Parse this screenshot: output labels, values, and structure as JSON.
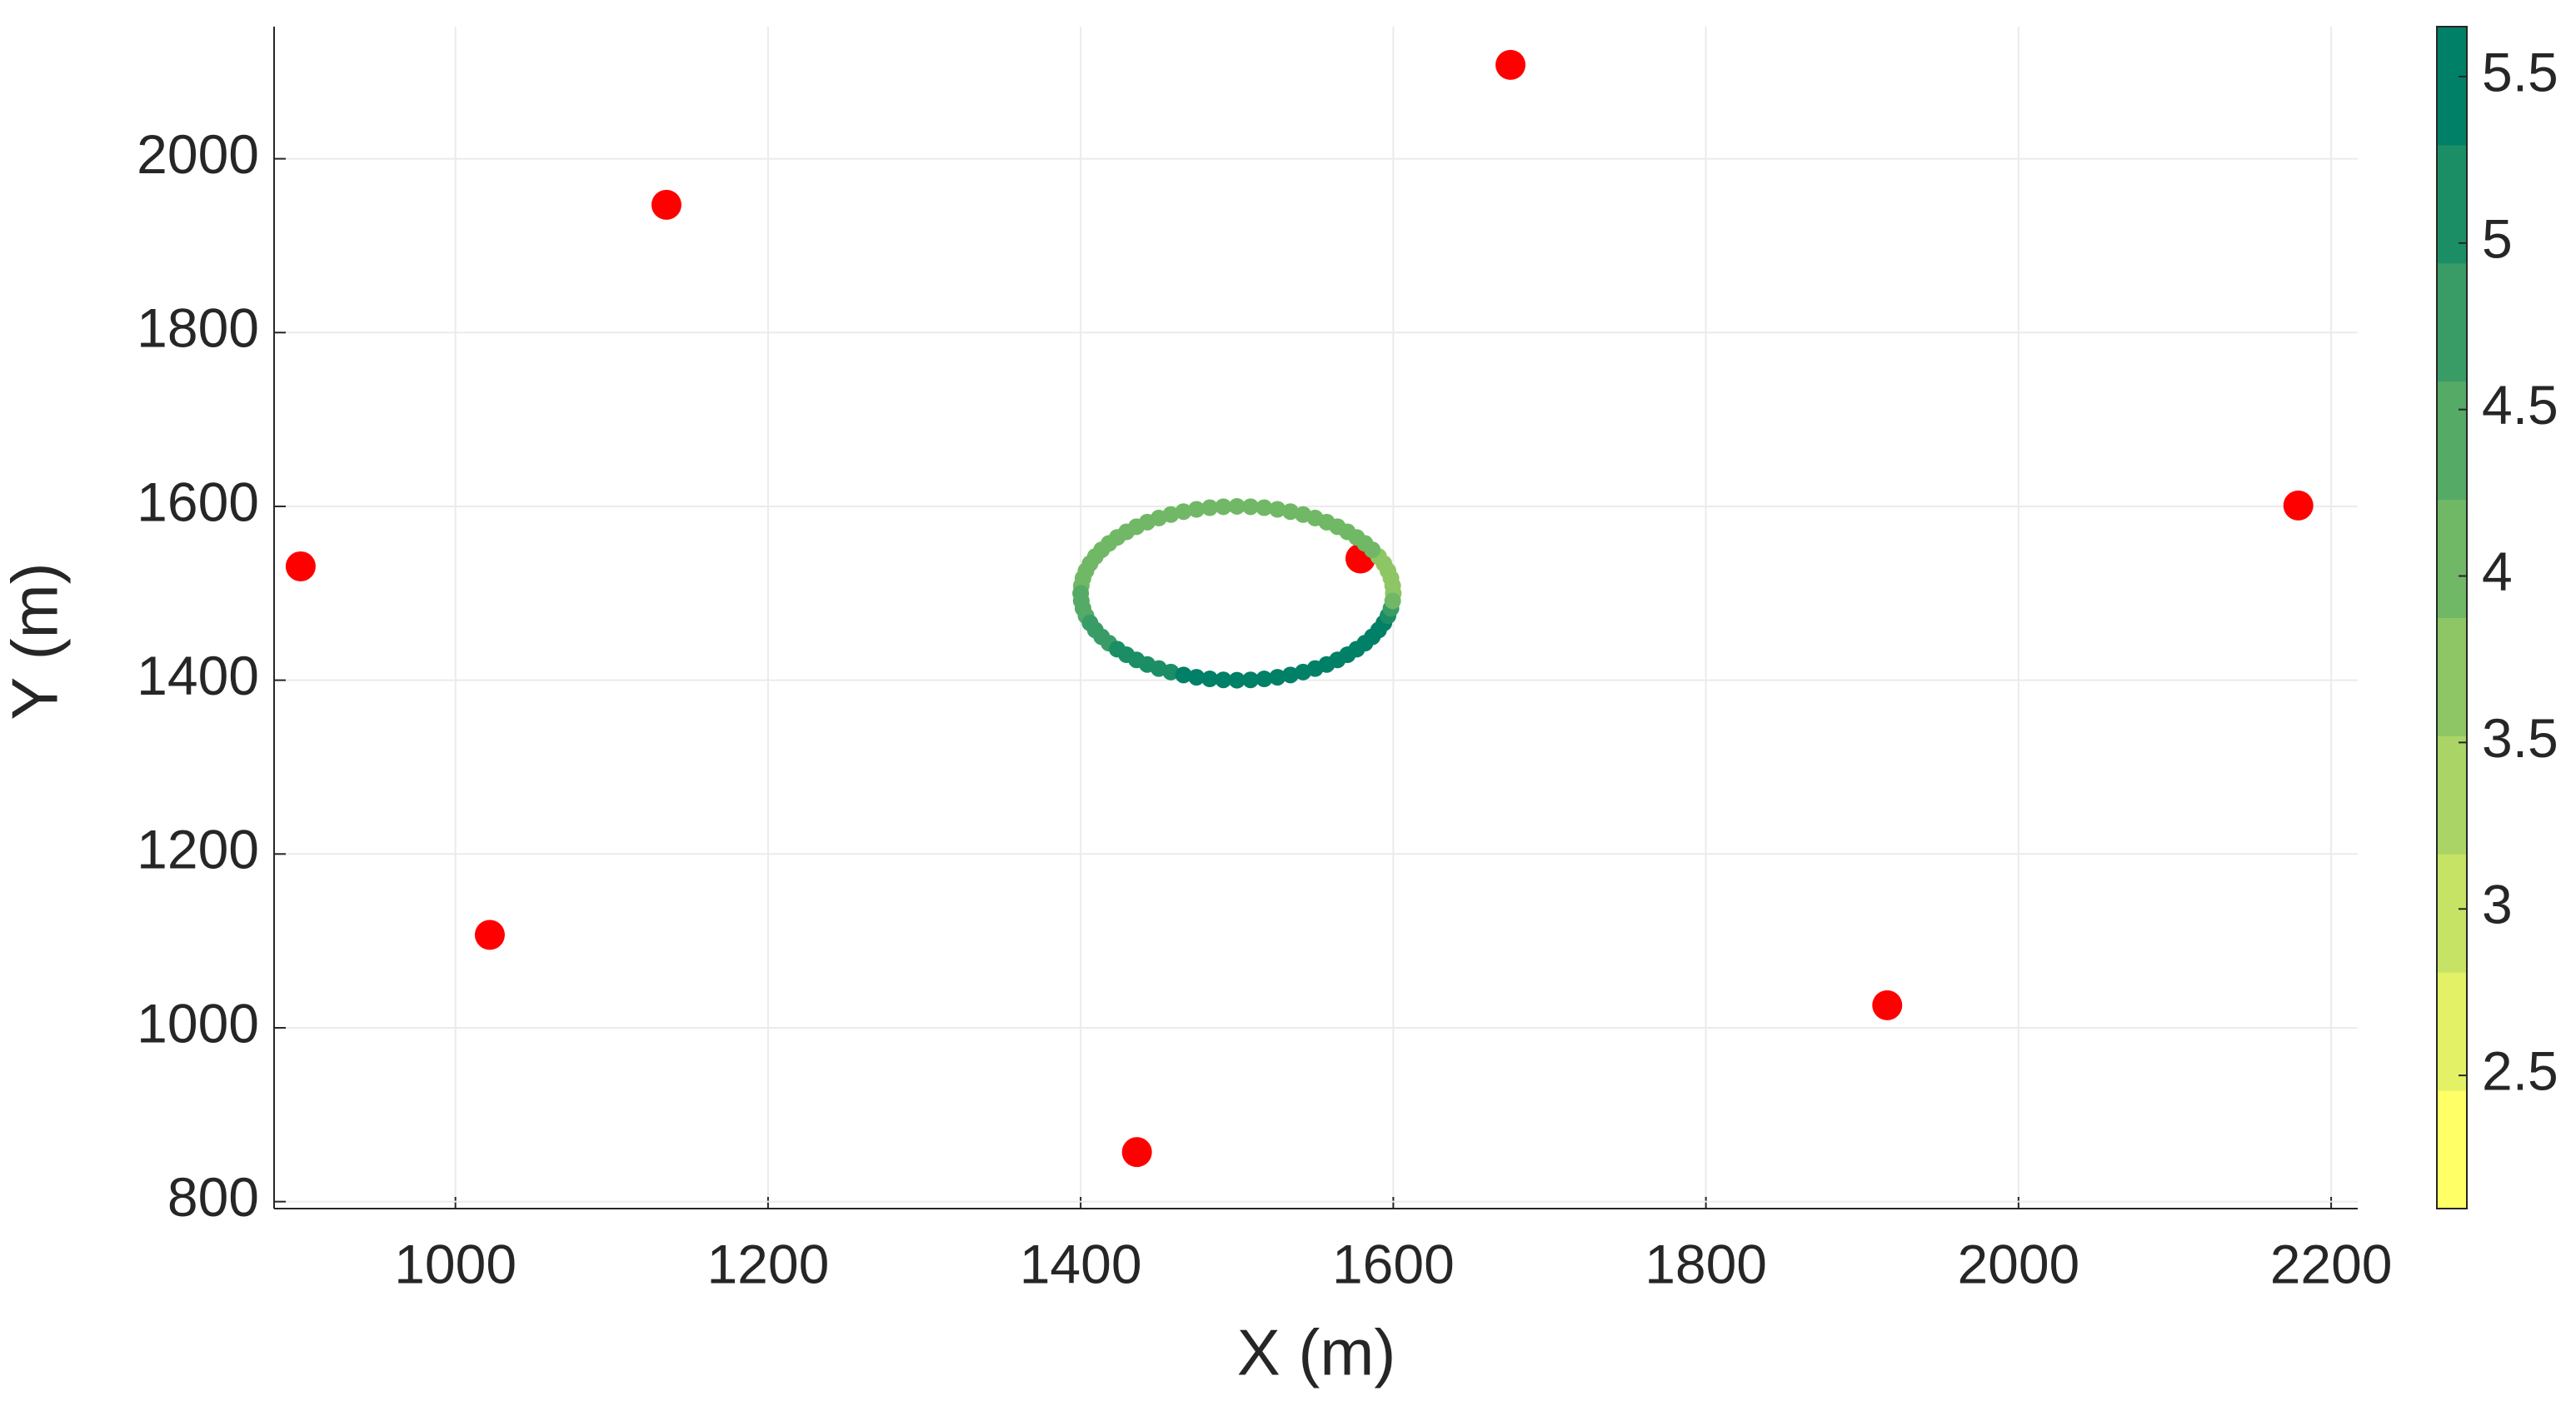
{
  "chart_data": {
    "type": "scatter",
    "xlabel": "X (m)",
    "ylabel": "Y (m)",
    "xlim": [
      884,
      2217
    ],
    "ylim": [
      792,
      2152
    ],
    "xticks": [
      1000,
      1200,
      1400,
      1600,
      1800,
      2000,
      2200
    ],
    "yticks": [
      800,
      1000,
      1200,
      1400,
      1600,
      1800,
      2000
    ],
    "grid": true,
    "series": [
      {
        "color": "#ff0000",
        "x": [
          1675,
          1135,
          901,
          1579,
          2179,
          1022,
          1916,
          1436
        ],
        "y": [
          2108,
          1947,
          1531,
          1540,
          1601,
          1107,
          1026,
          857
        ]
      },
      {
        "x": [
          1600,
          1599.6,
          1598.5,
          1596.6,
          1594,
          1590.6,
          1586.6,
          1581.9,
          1576.6,
          1570.7,
          1564.3,
          1557.4,
          1550,
          1542.3,
          1534.2,
          1525.9,
          1517.4,
          1508.7,
          1500,
          1491.3,
          1482.6,
          1474.1,
          1465.8,
          1457.7,
          1450,
          1442.6,
          1435.7,
          1429.3,
          1423.4,
          1418.1,
          1413.4,
          1409.4,
          1406,
          1403.4,
          1401.5,
          1400.4,
          1400,
          1400.4,
          1401.5,
          1403.4,
          1406,
          1409.4,
          1413.4,
          1418.1,
          1423.4,
          1429.3,
          1435.7,
          1442.6,
          1450,
          1457.7,
          1465.8,
          1474.1,
          1482.6,
          1491.3,
          1500,
          1508.7,
          1517.4,
          1525.9,
          1534.2,
          1542.3,
          1550,
          1557.4,
          1564.3,
          1570.7,
          1576.6,
          1581.9,
          1586.6,
          1590.6,
          1594,
          1596.6,
          1598.5,
          1599.6
        ],
        "y": [
          1500,
          1508.7,
          1517.4,
          1525.9,
          1534.2,
          1542.3,
          1550,
          1557.4,
          1564.3,
          1570.7,
          1576.6,
          1581.9,
          1586.6,
          1590.6,
          1594,
          1596.6,
          1598.5,
          1599.6,
          1600,
          1599.6,
          1598.5,
          1596.6,
          1594,
          1590.6,
          1586.6,
          1581.9,
          1576.6,
          1570.7,
          1564.3,
          1557.4,
          1550,
          1542.3,
          1534.2,
          1525.9,
          1517.4,
          1508.7,
          1500,
          1491.3,
          1482.6,
          1474.1,
          1465.8,
          1457.7,
          1450,
          1442.6,
          1435.7,
          1429.3,
          1423.4,
          1418.1,
          1413.4,
          1409.4,
          1406,
          1403.4,
          1401.5,
          1400.4,
          1400,
          1400.4,
          1401.5,
          1403.4,
          1406,
          1409.4,
          1413.4,
          1418.1,
          1423.4,
          1429.3,
          1435.7,
          1442.6,
          1450,
          1457.7,
          1465.8,
          1474.1,
          1482.6,
          1491.3
        ],
        "c": [
          3.8,
          3.7,
          3.6,
          3.6,
          3.7,
          3.8,
          3.9,
          4.0,
          4.1,
          4.1,
          4.1,
          4.2,
          4.2,
          4.2,
          4.2,
          4.2,
          4.2,
          4.2,
          4.2,
          4.2,
          4.2,
          4.2,
          4.2,
          4.2,
          4.2,
          4.2,
          4.2,
          4.2,
          4.2,
          4.2,
          4.2,
          4.1,
          4.1,
          4.1,
          4.1,
          4.2,
          4.3,
          4.3,
          4.4,
          4.5,
          4.6,
          4.7,
          4.8,
          4.9,
          5.0,
          5.0,
          5.1,
          5.1,
          5.2,
          5.2,
          5.3,
          5.3,
          5.3,
          5.3,
          5.3,
          5.3,
          5.3,
          5.3,
          5.4,
          5.4,
          5.4,
          5.5,
          5.5,
          5.5,
          5.5,
          5.5,
          5.5,
          5.4,
          5.3,
          5.1,
          4.7,
          4.2
        ]
      }
    ],
    "colorbar": {
      "clim": [
        2.1,
        5.65
      ],
      "ticks": [
        2.5,
        3,
        3.5,
        4,
        4.5,
        5,
        5.5
      ],
      "colors": [
        "#ffff66",
        "#e3f166",
        "#c6e366",
        "#aad566",
        "#8ec666",
        "#71b866",
        "#55aa66",
        "#399c66",
        "#1c8e66",
        "#008066"
      ]
    }
  }
}
